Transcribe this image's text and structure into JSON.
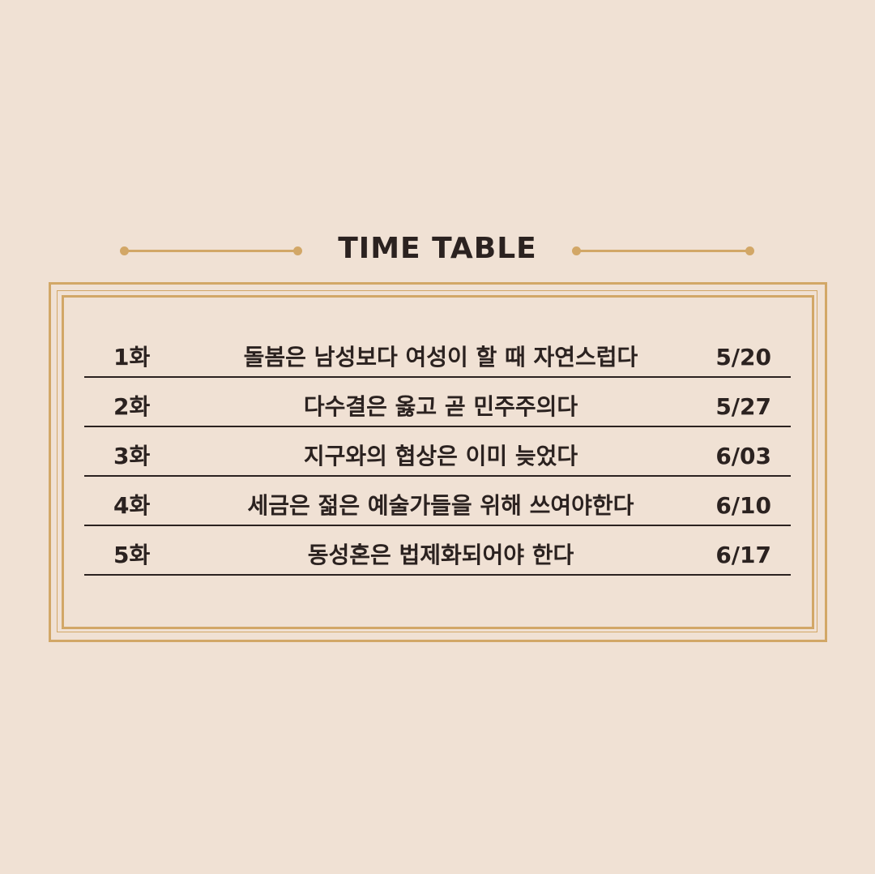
{
  "header": {
    "title": "TIME TABLE"
  },
  "timetable": {
    "rows": [
      {
        "episode": "1화",
        "topic": "돌봄은 남성보다 여성이 할 때 자연스럽다",
        "date": "5/20"
      },
      {
        "episode": "2화",
        "topic": "다수결은 옳고 곧 민주주의다",
        "date": "5/27"
      },
      {
        "episode": "3화",
        "topic": "지구와의 협상은 이미 늦었다",
        "date": "6/03"
      },
      {
        "episode": "4화",
        "topic": "세금은 젊은 예술가들을 위해 쓰여야한다",
        "date": "6/10"
      },
      {
        "episode": "5화",
        "topic": "동성혼은 법제화되어야 한다",
        "date": "6/17"
      }
    ]
  },
  "colors": {
    "background": "#f0e1d4",
    "accent_gold": "#d2a767",
    "text": "#2b2220"
  }
}
